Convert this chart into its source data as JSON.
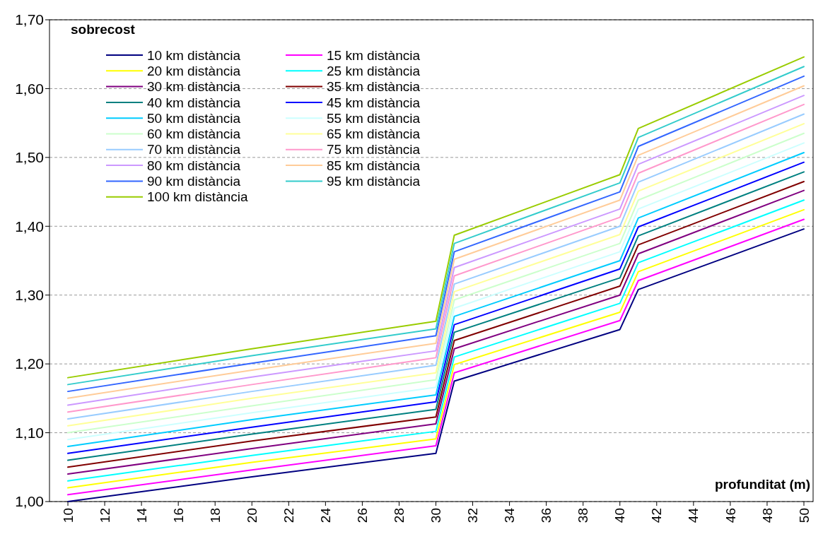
{
  "chart_data": {
    "type": "line",
    "xlabel": "profunditat (m)",
    "ylabel": "sobrecost",
    "x": [
      10,
      20,
      30,
      31,
      40,
      41,
      50
    ],
    "xlim": [
      9,
      50.5
    ],
    "xticks": [
      10,
      12,
      14,
      16,
      18,
      20,
      22,
      24,
      26,
      28,
      30,
      32,
      34,
      36,
      38,
      40,
      42,
      44,
      46,
      48,
      50
    ],
    "ylim": [
      1,
      1.7
    ],
    "yticks": [
      {
        "value": 1,
        "label": "1,00"
      },
      {
        "value": 1.1,
        "label": "1,10"
      },
      {
        "value": 1.2,
        "label": "1,20"
      },
      {
        "value": 1.3,
        "label": "1,30"
      },
      {
        "value": 1.4,
        "label": "1,40"
      },
      {
        "value": 1.5,
        "label": "1,50"
      },
      {
        "value": 1.6,
        "label": "1,60"
      },
      {
        "value": 1.7,
        "label": "1,70"
      }
    ],
    "grid": "y",
    "legend": "top left",
    "marker": "none",
    "line_style": "solid",
    "series": [
      {
        "name": "10 km distància",
        "color": "#000080",
        "values": [
          1.0,
          1.036,
          1.07,
          1.175,
          1.25,
          1.308,
          1.396
        ]
      },
      {
        "name": "15 km distància",
        "color": "#ff00ff",
        "values": [
          1.01,
          1.046,
          1.081,
          1.187,
          1.263,
          1.321,
          1.41
        ]
      },
      {
        "name": "20 km distància",
        "color": "#ffff00",
        "values": [
          1.02,
          1.057,
          1.091,
          1.199,
          1.275,
          1.334,
          1.424
        ]
      },
      {
        "name": "25 km distància",
        "color": "#00ffff",
        "values": [
          1.03,
          1.067,
          1.102,
          1.21,
          1.288,
          1.347,
          1.438
        ]
      },
      {
        "name": "30 km distància",
        "color": "#800080",
        "values": [
          1.04,
          1.077,
          1.113,
          1.222,
          1.3,
          1.36,
          1.452
        ]
      },
      {
        "name": "35 km distància",
        "color": "#800000",
        "values": [
          1.05,
          1.088,
          1.123,
          1.234,
          1.313,
          1.373,
          1.465
        ]
      },
      {
        "name": "40 km distància",
        "color": "#008080",
        "values": [
          1.06,
          1.098,
          1.134,
          1.246,
          1.325,
          1.386,
          1.479
        ]
      },
      {
        "name": "45 km distància",
        "color": "#0000ff",
        "values": [
          1.07,
          1.108,
          1.145,
          1.257,
          1.338,
          1.399,
          1.493
        ]
      },
      {
        "name": "50 km distància",
        "color": "#00ccff",
        "values": [
          1.08,
          1.119,
          1.155,
          1.269,
          1.35,
          1.412,
          1.507
        ]
      },
      {
        "name": "55 km distància",
        "color": "#ccffff",
        "values": [
          1.09,
          1.129,
          1.166,
          1.281,
          1.363,
          1.425,
          1.521
        ]
      },
      {
        "name": "60 km distància",
        "color": "#ccffcc",
        "values": [
          1.1,
          1.139,
          1.177,
          1.293,
          1.375,
          1.438,
          1.535
        ]
      },
      {
        "name": "65 km distància",
        "color": "#ffff99",
        "values": [
          1.11,
          1.15,
          1.187,
          1.305,
          1.388,
          1.451,
          1.549
        ]
      },
      {
        "name": "70 km distància",
        "color": "#99ccff",
        "values": [
          1.12,
          1.16,
          1.198,
          1.316,
          1.4,
          1.464,
          1.563
        ]
      },
      {
        "name": "75 km distància",
        "color": "#ff99cc",
        "values": [
          1.13,
          1.17,
          1.209,
          1.328,
          1.413,
          1.477,
          1.577
        ]
      },
      {
        "name": "80 km distància",
        "color": "#cc99ff",
        "values": [
          1.14,
          1.181,
          1.219,
          1.34,
          1.425,
          1.49,
          1.59
        ]
      },
      {
        "name": "85 km distància",
        "color": "#ffcc99",
        "values": [
          1.15,
          1.191,
          1.23,
          1.352,
          1.438,
          1.503,
          1.604
        ]
      },
      {
        "name": "90 km distància",
        "color": "#3366ff",
        "values": [
          1.16,
          1.201,
          1.241,
          1.363,
          1.45,
          1.516,
          1.618
        ]
      },
      {
        "name": "95 km distància",
        "color": "#33cccc",
        "values": [
          1.17,
          1.212,
          1.251,
          1.375,
          1.463,
          1.529,
          1.632
        ]
      },
      {
        "name": "100 km distància",
        "color": "#99cc00",
        "values": [
          1.18,
          1.222,
          1.262,
          1.387,
          1.475,
          1.542,
          1.646
        ]
      }
    ]
  }
}
